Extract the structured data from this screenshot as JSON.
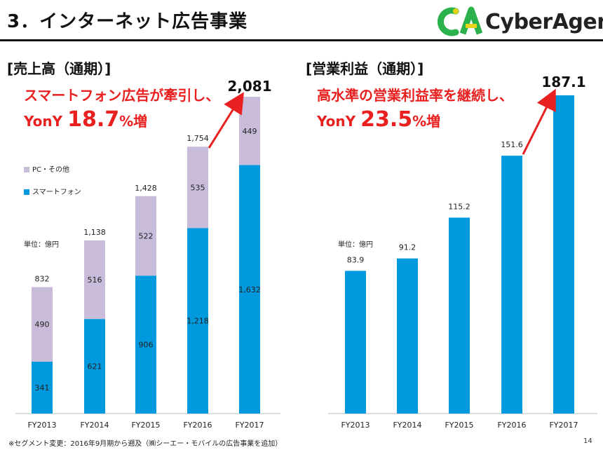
{
  "page": {
    "title": "3．インターネット広告事業",
    "footnote": "※セグメント変更：2016年9月期から遡及（㈱シーエー・モバイルの広告事業を追加）",
    "page_number": "14"
  },
  "logo": {
    "mark": "CA",
    "text": "CyberAgent.",
    "colors": {
      "green": "#2bb24c",
      "yellow": "#e7d21a"
    }
  },
  "left": {
    "section_label": "[売上高（通期）]",
    "callout_line1": "スマートフォン広告が牽引し、",
    "callout_prefix": "YonY ",
    "callout_value": "18.7",
    "callout_pct": "%増",
    "legend": [
      {
        "label": "PC・その他",
        "color": "#c9bcdb"
      },
      {
        "label": "スマートフォン",
        "color": "#0099dd"
      }
    ],
    "unit_label": "単位：億円"
  },
  "right": {
    "section_label": "[営業利益（通期）]",
    "callout_line1": "高水準の営業利益率を継続し、",
    "callout_prefix": "YonY ",
    "callout_value": "23.5",
    "callout_pct": "%増",
    "unit_label": "単位：億円"
  },
  "colors": {
    "accent": "#e8201f",
    "bar_blue": "#0099dd",
    "bar_lavender": "#c9bcdb"
  },
  "chart_data": [
    {
      "type": "bar",
      "stacked": true,
      "title": "売上高（通期）",
      "categories": [
        "FY2013",
        "FY2014",
        "FY2015",
        "FY2016",
        "FY2017"
      ],
      "series": [
        {
          "name": "スマートフォン",
          "values": [
            341,
            621,
            906,
            1218,
            1632
          ],
          "labels": [
            "341",
            "621",
            "906",
            "1,218",
            "1,632"
          ]
        },
        {
          "name": "PC・その他",
          "values": [
            490,
            516,
            522,
            535,
            449
          ],
          "labels": [
            "490",
            "516",
            "522",
            "535",
            "449"
          ]
        }
      ],
      "totals": [
        832,
        1138,
        1428,
        1754,
        2081
      ],
      "total_labels": [
        "832",
        "1,138",
        "1,428",
        "1,754",
        "2,081"
      ],
      "ylim": [
        0,
        2081
      ],
      "ylabel": "単位：億円"
    },
    {
      "type": "bar",
      "title": "営業利益（通期）",
      "categories": [
        "FY2013",
        "FY2014",
        "FY2015",
        "FY2016",
        "FY2017"
      ],
      "values": [
        83.9,
        91.2,
        115.2,
        151.6,
        187.1
      ],
      "value_labels": [
        "83.9",
        "91.2",
        "115.2",
        "151.6",
        "187.1"
      ],
      "ylim": [
        0,
        187.1
      ],
      "ylabel": "単位：億円"
    }
  ]
}
